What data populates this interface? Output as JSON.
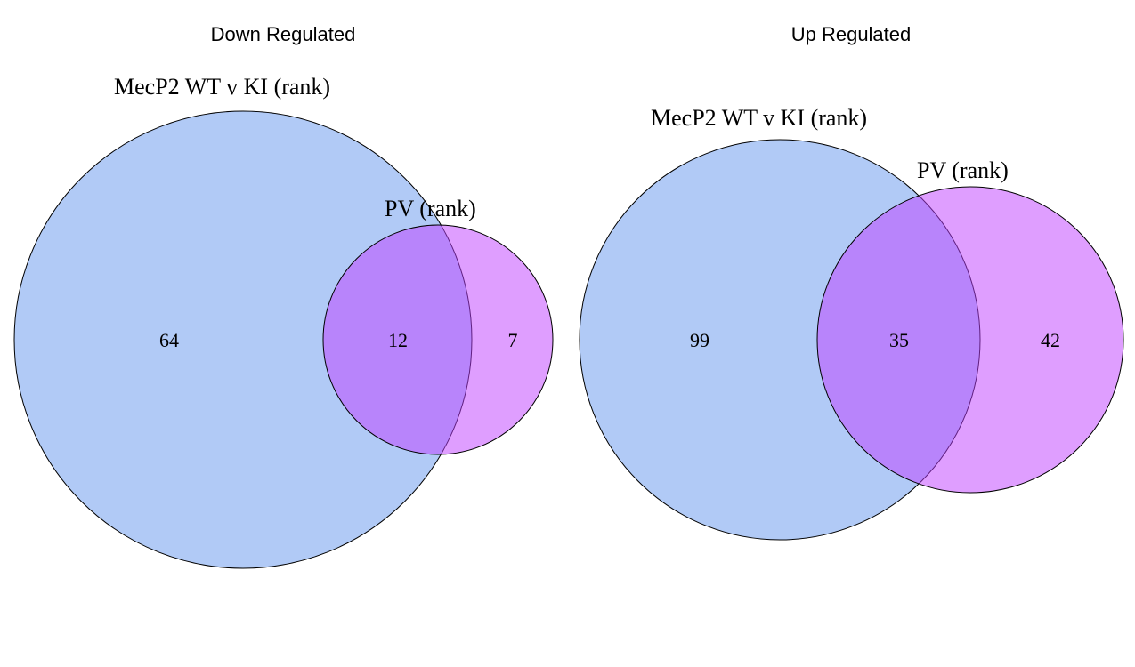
{
  "colors": {
    "set_a": "#6495ED",
    "set_b": "#BF3EFF",
    "fill_opacity": 0.5
  },
  "diagrams": [
    {
      "title": "Down Regulated",
      "set_a_label": "MecP2  WT v KI (rank)",
      "set_b_label": "PV (rank)",
      "only_a": "64",
      "both": "12",
      "only_b": "7"
    },
    {
      "title": "Up Regulated",
      "set_a_label": "MecP2  WT v KI (rank)",
      "set_b_label": "PV (rank)",
      "only_a": "99",
      "both": "35",
      "only_b": "42"
    }
  ]
}
